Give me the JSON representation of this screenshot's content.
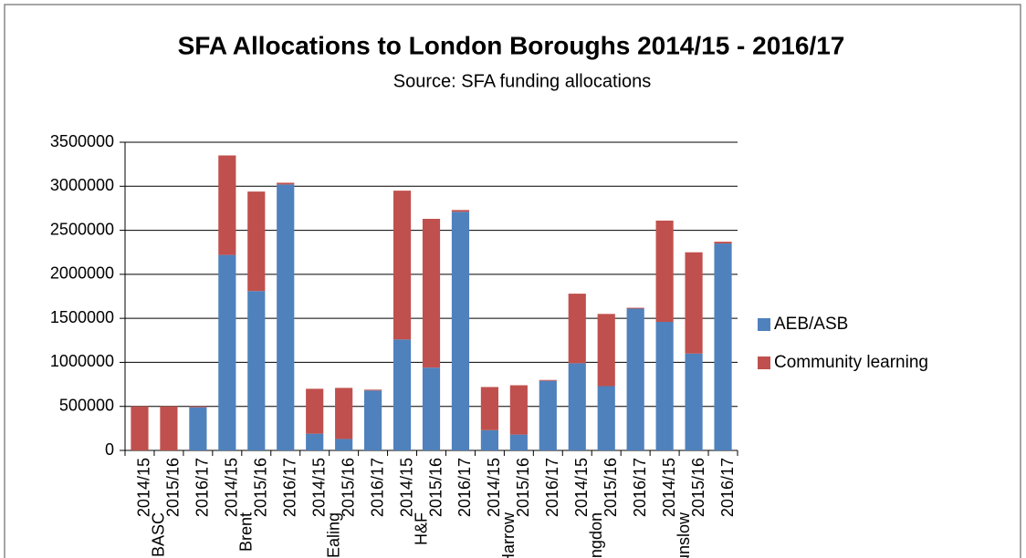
{
  "chart_data": {
    "type": "stacked_bar",
    "title": "SFA Allocations to London Boroughs 2014/15 - 2016/17",
    "subtitle": "Source: SFA funding allocations",
    "categories": [
      "2014/15",
      "2015/16",
      "2016/17",
      "2014/15",
      "2015/16",
      "2016/17",
      "2014/15",
      "2015/16",
      "2016/17",
      "2014/15",
      "2015/16",
      "2016/17",
      "2014/15",
      "2015/16",
      "2016/17",
      "2014/15",
      "2015/16",
      "2016/17",
      "2014/15",
      "2015/16",
      "2016/17"
    ],
    "category_groups": [
      "BASC",
      "Brent",
      "Ealing",
      "H&F",
      "Harrow",
      "Hillingdon",
      "Hounslow"
    ],
    "series": [
      {
        "name": "AEB/ASB",
        "color": "#4f81bd",
        "values": [
          0,
          0,
          490000,
          2220000,
          1810000,
          3020000,
          190000,
          130000,
          680000,
          1260000,
          940000,
          2710000,
          230000,
          180000,
          790000,
          990000,
          730000,
          1610000,
          1460000,
          1100000,
          2350000
        ]
      },
      {
        "name": "Community learning",
        "color": "#c0504d",
        "values": [
          500000,
          500000,
          10000,
          1130000,
          1130000,
          20000,
          510000,
          580000,
          10000,
          1690000,
          1690000,
          20000,
          490000,
          560000,
          10000,
          790000,
          820000,
          10000,
          1150000,
          1150000,
          20000
        ]
      }
    ],
    "ylim": [
      0,
      3500000
    ],
    "yticks": [
      0,
      500000,
      1000000,
      1500000,
      2000000,
      2500000,
      3000000,
      3500000
    ],
    "grid": true,
    "legend": "right"
  }
}
